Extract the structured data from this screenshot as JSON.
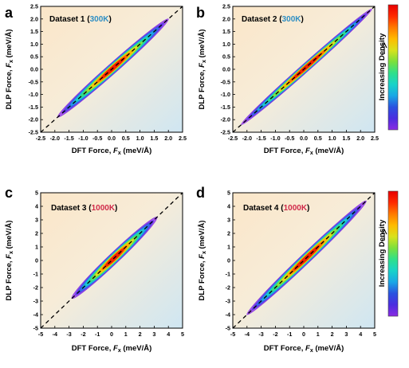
{
  "chart_data": [
    {
      "type": "heatmap",
      "panel_label": "a",
      "title": "Dataset 1",
      "title_temp": "300K",
      "title_temp_color": "#2f8fc4",
      "xlabel_prefix": "DFT Force, ",
      "xlabel_var": "F",
      "xlabel_sub": "x",
      "xlabel_unit": " (meV/Å)",
      "ylabel_prefix": "DLP Force, ",
      "ylabel_var": "F",
      "ylabel_sub": "x",
      "ylabel_unit": " (meV/Å)",
      "xlim": [
        -2.5,
        2.5
      ],
      "ylim": [
        -2.5,
        2.5
      ],
      "ticks": [
        "-2.5",
        "-2.0",
        "-1.5",
        "-1.0",
        "-0.5",
        "0.0",
        "0.5",
        "1.0",
        "1.5",
        "2.0",
        "2.5"
      ],
      "tick_values": [
        -2.5,
        -2.0,
        -1.5,
        -1.0,
        -0.5,
        0.0,
        0.5,
        1.0,
        1.5,
        2.0,
        2.5
      ],
      "reference_line": "y = x",
      "data_extent": [
        -1.9,
        2.0
      ],
      "spread": 0.14
    },
    {
      "type": "heatmap",
      "panel_label": "b",
      "title": "Dataset 2",
      "title_temp": "300K",
      "title_temp_color": "#2f8fc4",
      "xlabel_prefix": "DFT Force, ",
      "xlabel_var": "F",
      "xlabel_sub": "x",
      "xlabel_unit": " (meV/Å)",
      "ylabel_prefix": "DLP Force, ",
      "ylabel_var": "F",
      "ylabel_sub": "x",
      "ylabel_unit": " (meV/Å)",
      "xlim": [
        -2.5,
        2.5
      ],
      "ylim": [
        -2.5,
        2.5
      ],
      "ticks": [
        "-2.5",
        "-2.0",
        "-1.5",
        "-1.0",
        "-0.5",
        "0.0",
        "0.5",
        "1.0",
        "1.5",
        "2.0",
        "2.5"
      ],
      "tick_values": [
        -2.5,
        -2.0,
        -1.5,
        -1.0,
        -0.5,
        0.0,
        0.5,
        1.0,
        1.5,
        2.0,
        2.5
      ],
      "reference_line": "y = x",
      "data_extent": [
        -2.2,
        2.4
      ],
      "spread": 0.11
    },
    {
      "type": "heatmap",
      "panel_label": "c",
      "title": "Dataset 3",
      "title_temp": "1000K",
      "title_temp_color": "#d02a4a",
      "xlabel_prefix": "DFT Force, ",
      "xlabel_var": "F",
      "xlabel_sub": "x",
      "xlabel_unit": " (meV/Å)",
      "ylabel_prefix": "DLP Force, ",
      "ylabel_var": "F",
      "ylabel_sub": "x",
      "ylabel_unit": " (meV/Å)",
      "xlim": [
        -5,
        5
      ],
      "ylim": [
        -5,
        5
      ],
      "ticks": [
        "-5",
        "-4",
        "-3",
        "-2",
        "-1",
        "0",
        "1",
        "2",
        "3",
        "4",
        "5"
      ],
      "tick_values": [
        -5,
        -4,
        -3,
        -2,
        -1,
        0,
        1,
        2,
        3,
        4,
        5
      ],
      "reference_line": "y = x",
      "data_extent": [
        -2.8,
        3.2
      ],
      "spread": 0.3
    },
    {
      "type": "heatmap",
      "panel_label": "d",
      "title": "Dataset 4",
      "title_temp": "1000K",
      "title_temp_color": "#d02a4a",
      "xlabel_prefix": "DFT Force, ",
      "xlabel_var": "F",
      "xlabel_sub": "x",
      "xlabel_unit": " (meV/Å)",
      "ylabel_prefix": "DLP Force, ",
      "ylabel_var": "F",
      "ylabel_sub": "x",
      "ylabel_unit": " (meV/Å)",
      "xlim": [
        -5,
        5
      ],
      "ylim": [
        -5,
        5
      ],
      "ticks": [
        "-5",
        "-4",
        "-3",
        "-2",
        "-1",
        "0",
        "1",
        "2",
        "3",
        "4",
        "5"
      ],
      "tick_values": [
        -5,
        -4,
        -3,
        -2,
        -1,
        0,
        1,
        2,
        3,
        4,
        5
      ],
      "reference_line": "y = x",
      "data_extent": [
        -4.0,
        4.4
      ],
      "spread": 0.28
    }
  ],
  "colorbar": {
    "label": "Increasing Density",
    "colors": [
      "#8a2be2",
      "#4b2de0",
      "#2a52e0",
      "#19a7e6",
      "#18d3c9",
      "#2fe08a",
      "#7be03c",
      "#d8e21c",
      "#ffbb00",
      "#ff7a00",
      "#ff2a00",
      "#e80000"
    ]
  }
}
